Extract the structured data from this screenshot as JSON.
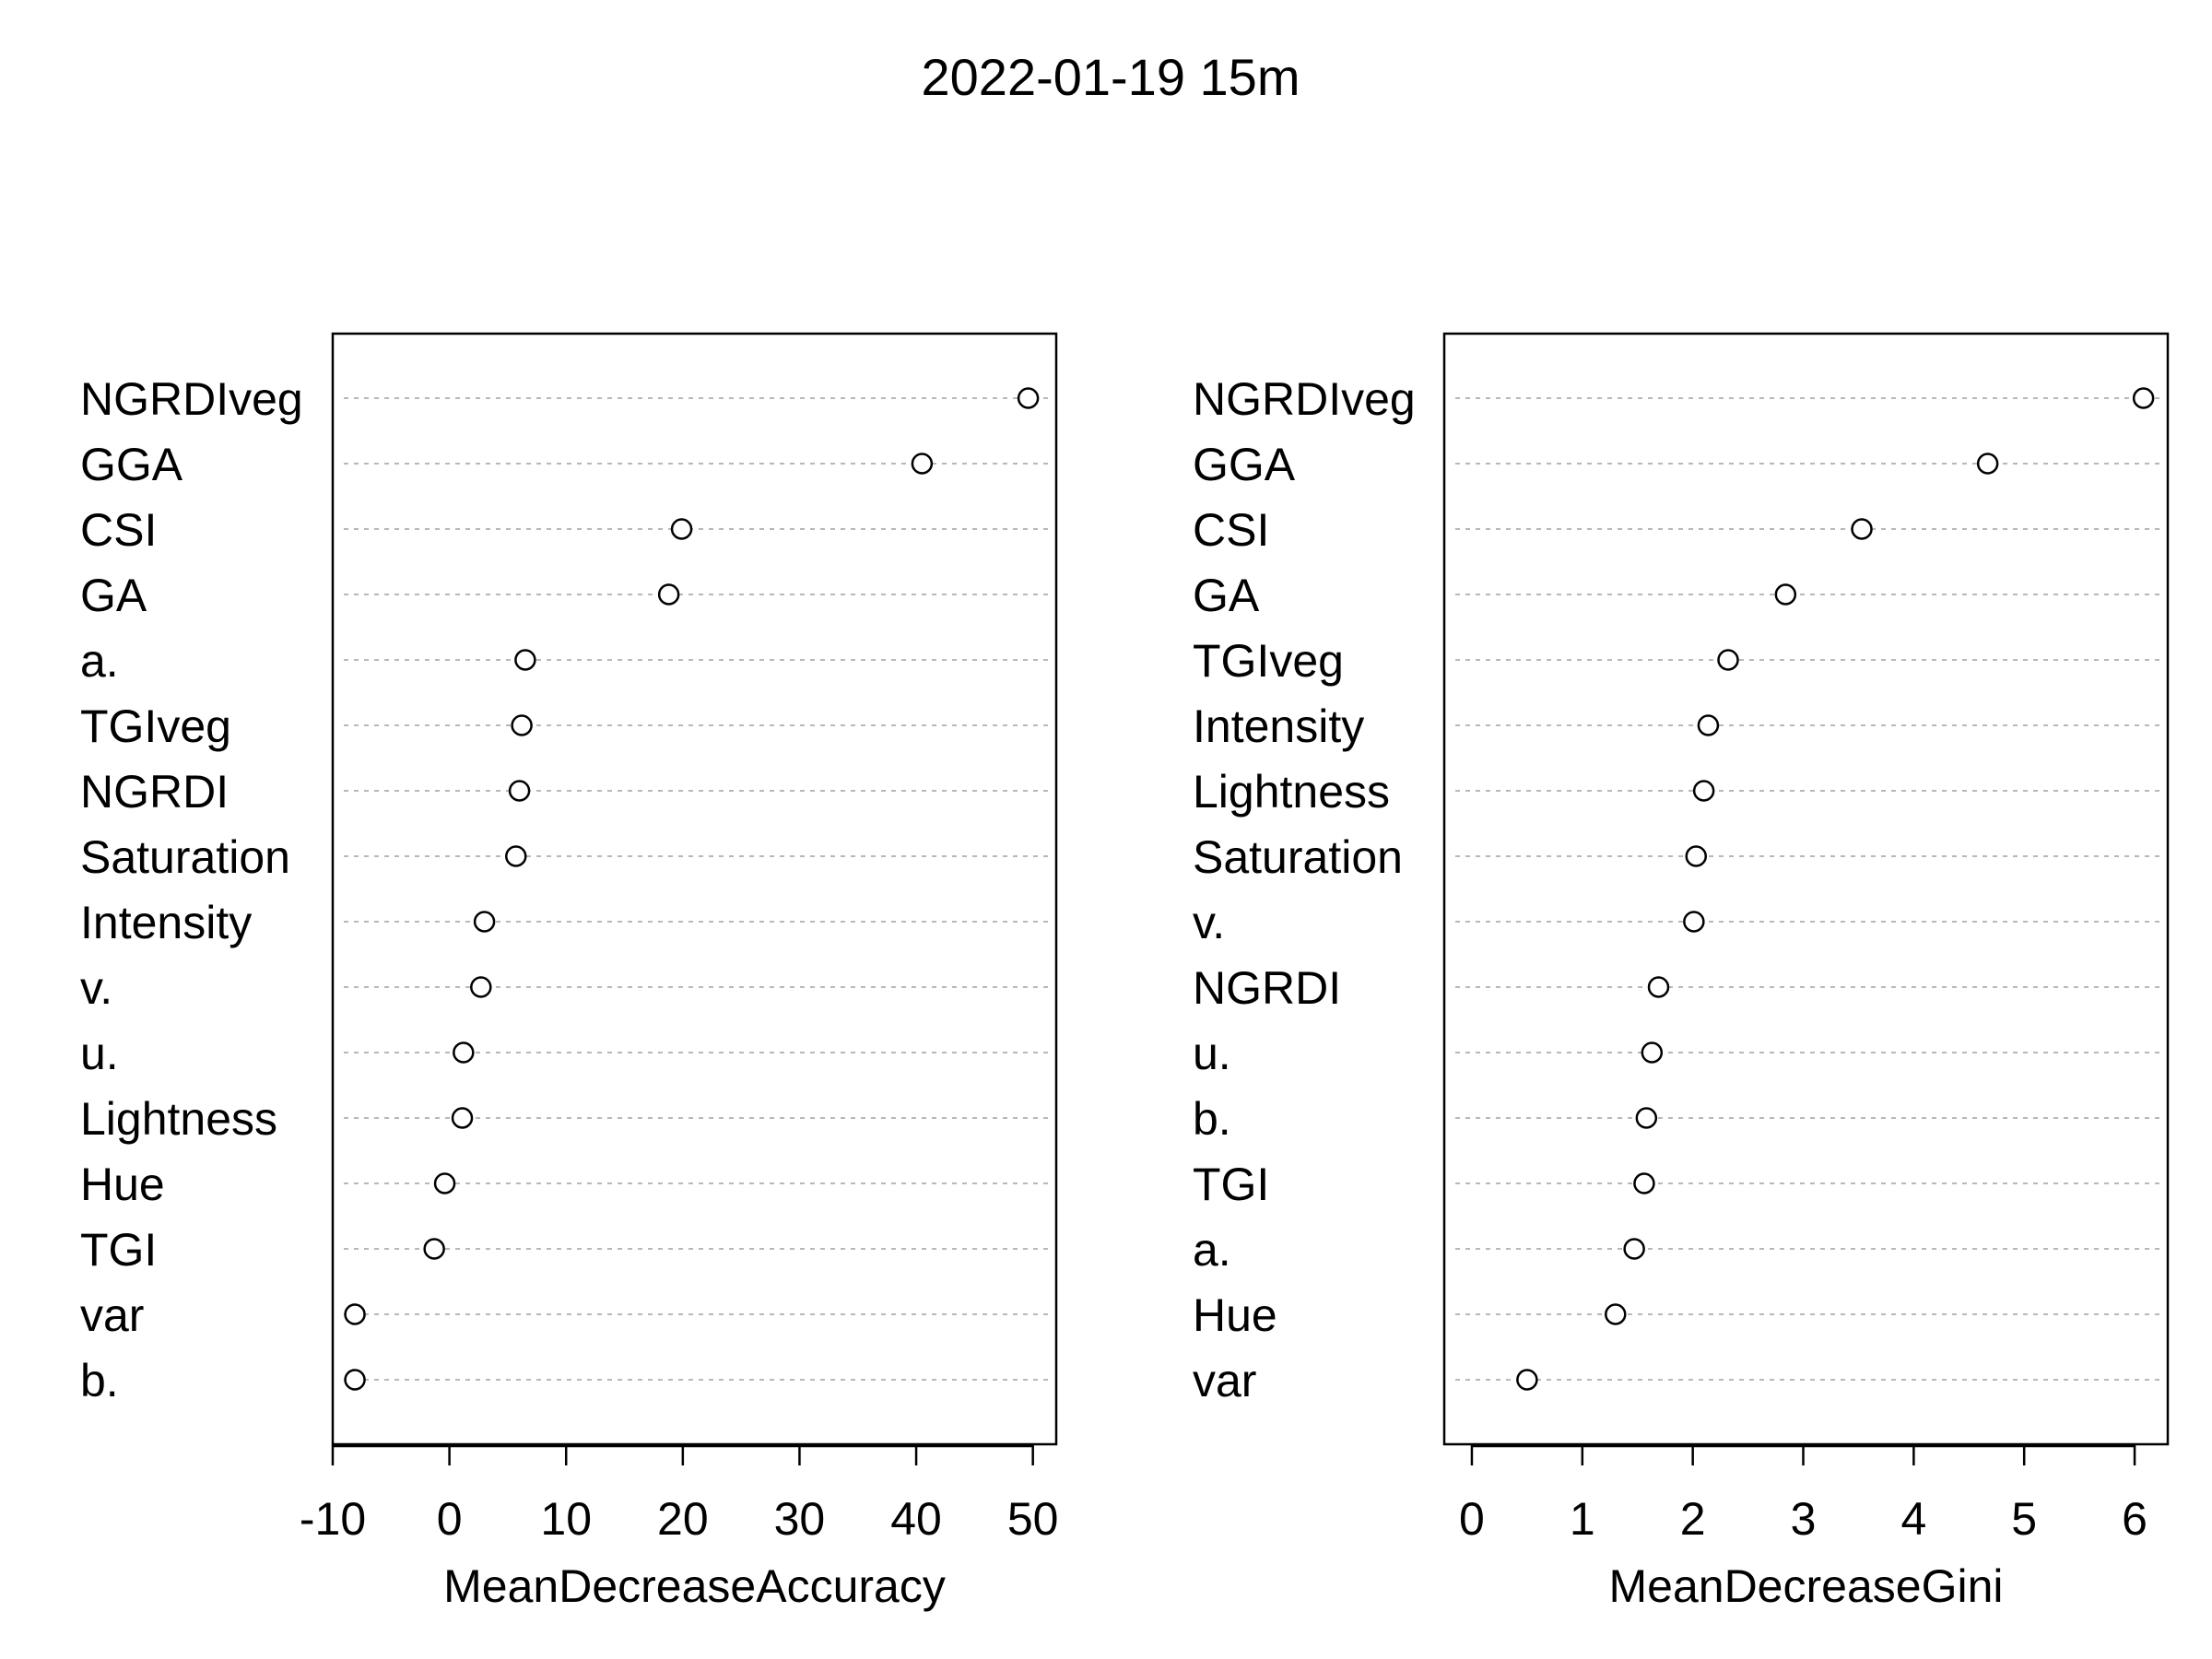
{
  "title": "2022-01-19 15m",
  "chart_data": [
    {
      "type": "scatter",
      "style": "dotchart",
      "xlabel": "MeanDecreaseAccuracy",
      "xlim": [
        -10,
        52
      ],
      "xticks": [
        -10,
        0,
        10,
        20,
        30,
        40,
        50
      ],
      "grid": "horizontal dotted",
      "categories": [
        "NGRDIveg",
        "GGA",
        "CSI",
        "GA",
        "a.",
        "TGIveg",
        "NGRDI",
        "Saturation",
        "Intensity",
        "v.",
        "u.",
        "Lightness",
        "Hue",
        "TGI",
        "var",
        "b."
      ],
      "values": [
        49.6,
        40.5,
        19.9,
        18.8,
        6.5,
        6.2,
        6.0,
        5.7,
        3.0,
        2.7,
        1.2,
        1.1,
        -0.4,
        -1.3,
        -8.1,
        -8.1
      ]
    },
    {
      "type": "scatter",
      "style": "dotchart",
      "xlabel": "MeanDecreaseGini",
      "xlim": [
        -0.25,
        6.3
      ],
      "xticks": [
        0,
        1,
        2,
        3,
        4,
        5,
        6
      ],
      "grid": "horizontal dotted",
      "categories": [
        "NGRDIveg",
        "GGA",
        "CSI",
        "GA",
        "TGIveg",
        "Intensity",
        "Lightness",
        "Saturation",
        "v.",
        "NGRDI",
        "u.",
        "b.",
        "TGI",
        "a.",
        "Hue",
        "var"
      ],
      "values": [
        6.08,
        4.67,
        3.53,
        2.84,
        2.32,
        2.14,
        2.1,
        2.03,
        2.01,
        1.69,
        1.63,
        1.58,
        1.56,
        1.47,
        1.3,
        0.5
      ]
    }
  ]
}
